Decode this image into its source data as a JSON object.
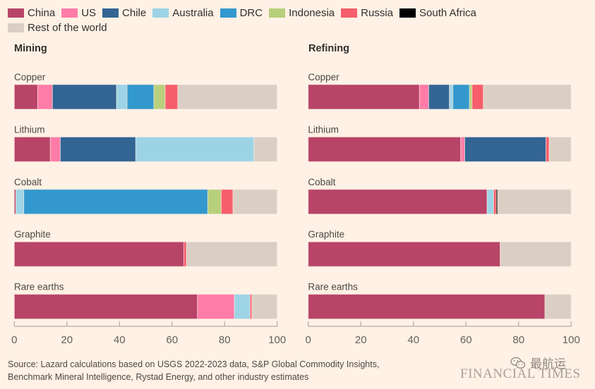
{
  "colors": {
    "China": "#b84468",
    "US": "#ff7ca8",
    "Chile": "#336593",
    "Australia": "#9dd4e5",
    "DRC": "#3398cd",
    "Indonesia": "#b8cf7c",
    "Russia": "#f65e6c",
    "South Africa": "#000000",
    "Rest of the world": "#dbcfc5"
  },
  "legend": [
    "China",
    "US",
    "Chile",
    "Australia",
    "DRC",
    "Indonesia",
    "Russia",
    "South Africa",
    "Rest of the world"
  ],
  "panels": {
    "mining_title": "Mining",
    "refining_title": "Refining"
  },
  "footer": {
    "source_line1": "Source: Lazard calculations based on USGS 2022-2023 data, S&P Global Commodity Insights,",
    "source_line2": "Benchmark Mineral Intelligence, Rystad Energy, and other industry estimates",
    "logo": "FINANCIAL TIMES",
    "watermark": "最航运"
  },
  "chart_data": [
    {
      "type": "bar",
      "orientation": "horizontal-stacked",
      "title": "Mining",
      "xlabel": "",
      "ylabel": "",
      "xlim": [
        0,
        100
      ],
      "xticks": [
        0,
        20,
        40,
        60,
        80,
        100
      ],
      "grid": false,
      "legend_position": "top-left",
      "categories": [
        "Copper",
        "Lithium",
        "Cobalt",
        "Graphite",
        "Rare earths"
      ],
      "series": [
        {
          "name": "China",
          "values": [
            8.9,
            13.7,
            0.6,
            64.5,
            69.7
          ]
        },
        {
          "name": "US",
          "values": [
            5.6,
            3.8,
            0,
            0,
            14.0
          ]
        },
        {
          "name": "Chile",
          "values": [
            24.4,
            28.7,
            0,
            0,
            0
          ]
        },
        {
          "name": "Australia",
          "values": [
            4.0,
            45.0,
            3.0,
            0,
            6.0
          ]
        },
        {
          "name": "DRC",
          "values": [
            10.2,
            0,
            70.0,
            0,
            0
          ]
        },
        {
          "name": "Indonesia",
          "values": [
            4.3,
            0,
            5.1,
            0,
            0
          ]
        },
        {
          "name": "Russia",
          "values": [
            4.8,
            0,
            4.5,
            1.0,
            0.7
          ]
        },
        {
          "name": "South Africa",
          "values": [
            0,
            0,
            0,
            0,
            0
          ]
        },
        {
          "name": "Rest of the world",
          "values": [
            37.8,
            8.8,
            16.8,
            34.5,
            9.6
          ]
        }
      ]
    },
    {
      "type": "bar",
      "orientation": "horizontal-stacked",
      "title": "Refining",
      "xlabel": "",
      "ylabel": "",
      "xlim": [
        0,
        100
      ],
      "xticks": [
        0,
        20,
        40,
        60,
        80,
        100
      ],
      "grid": false,
      "legend_position": "top-left",
      "categories": [
        "Copper",
        "Lithium",
        "Cobalt",
        "Graphite",
        "Rare earths"
      ],
      "series": [
        {
          "name": "China",
          "values": [
            42.3,
            58.0,
            68.0,
            73.0,
            90.0
          ]
        },
        {
          "name": "US",
          "values": [
            3.5,
            1.5,
            0,
            0,
            0
          ]
        },
        {
          "name": "Chile",
          "values": [
            7.9,
            30.9,
            0,
            0,
            0
          ]
        },
        {
          "name": "Australia",
          "values": [
            1.3,
            0,
            2.5,
            0,
            0
          ]
        },
        {
          "name": "DRC",
          "values": [
            6.3,
            0,
            0,
            0,
            0
          ]
        },
        {
          "name": "Indonesia",
          "values": [
            1.0,
            0,
            0,
            0,
            0
          ]
        },
        {
          "name": "Russia",
          "values": [
            4.3,
            1.2,
            1.0,
            0,
            0
          ]
        },
        {
          "name": "South Africa",
          "values": [
            0,
            0,
            0.5,
            0,
            0
          ]
        },
        {
          "name": "Rest of the world",
          "values": [
            33.4,
            8.4,
            28.0,
            27.0,
            10.0
          ]
        }
      ]
    }
  ]
}
